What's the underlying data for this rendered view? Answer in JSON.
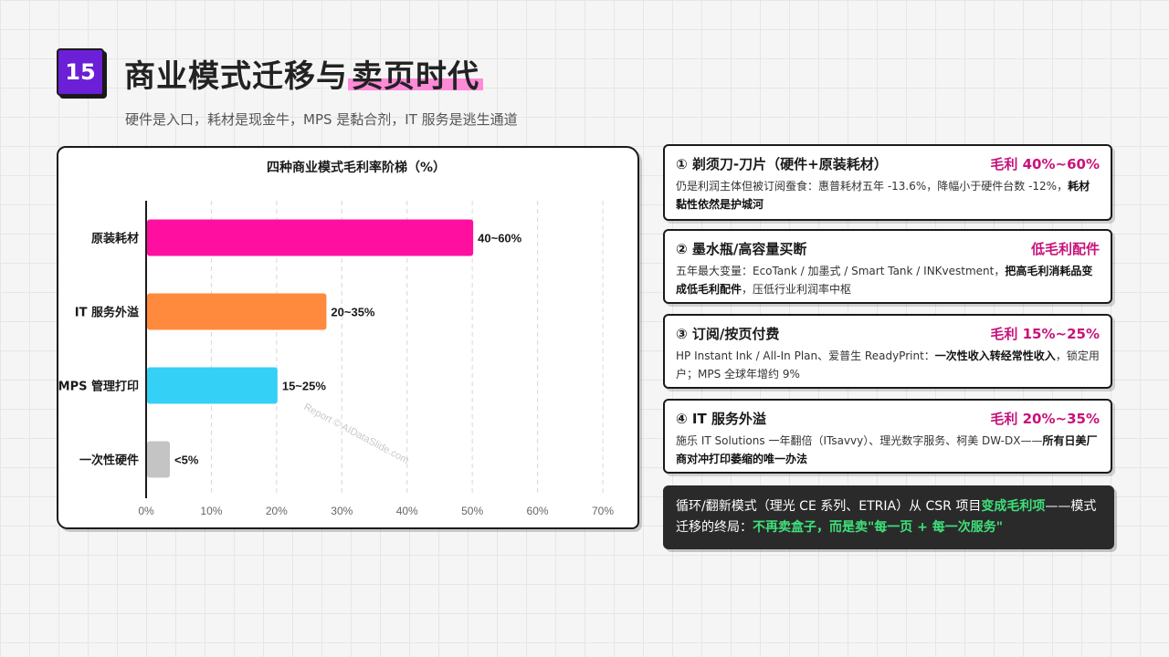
{
  "header": {
    "badge": "15",
    "title_main": "商业模式迁移与",
    "title_highlight": "卖页时代",
    "subtitle": "硬件是入口，耗材是现金牛，MPS 是黏合剂，IT 服务是逃生通道"
  },
  "chart_data": {
    "type": "bar",
    "orientation": "horizontal",
    "title": "四种商业模式毛利率阶梯（%）",
    "categories": [
      "原装耗材",
      "IT 服务外溢",
      "MPS 管理打印",
      "一次性硬件"
    ],
    "ranges": [
      [
        40,
        60
      ],
      [
        20,
        35
      ],
      [
        15,
        25
      ],
      [
        0,
        5
      ]
    ],
    "values": [
      50,
      27.5,
      20,
      3.5
    ],
    "value_labels": [
      "40~60%",
      "20~35%",
      "15~25%",
      "<5%"
    ],
    "colors": [
      "#ff0fa0",
      "#ff8a3d",
      "#35d0f5",
      "#c4c4c4"
    ],
    "xlim": [
      0,
      70
    ],
    "xticks": [
      0,
      10,
      20,
      30,
      40,
      50,
      60,
      70
    ],
    "xtick_labels": [
      "0%",
      "10%",
      "20%",
      "30%",
      "40%",
      "50%",
      "60%",
      "70%"
    ],
    "grid": "vertical-dashed",
    "xlabel": "",
    "ylabel": "",
    "watermark": "Report © AIDataSlide.com"
  },
  "cards": [
    {
      "title": "① 剃须刀-刀片（硬件+原装耗材）",
      "tag": "毛利 40%~60%",
      "body_plain": "仍是利润主体但被订阅蚕食：惠普耗材五年 -13.6%，降幅小于硬件台数 -12%，",
      "body_bold": "耗材黏性依然是护城河",
      "body_tail": ""
    },
    {
      "title": "② 墨水瓶/高容量买断",
      "tag": "低毛利配件",
      "body_plain": "五年最大变量：EcoTank / 加墨式 / Smart Tank / INKvestment，",
      "body_bold": "把高毛利消耗品变成低毛利配件",
      "body_tail": "，压低行业利润率中枢"
    },
    {
      "title": "③ 订阅/按页付费",
      "tag": "毛利 15%~25%",
      "body_plain": "HP Instant Ink / All-In Plan、爱普生 ReadyPrint：",
      "body_bold": "一次性收入转经常性收入",
      "body_tail": "，锁定用户；MPS 全球年增约 9%"
    },
    {
      "title": "④ IT 服务外溢",
      "tag": "毛利 20%~35%",
      "body_plain": "施乐 IT Solutions 一年翻倍（ITsavvy）、理光数字服务、柯美 DW-DX——",
      "body_bold": "所有日美厂商对冲打印萎缩的唯一办法",
      "body_tail": ""
    }
  ],
  "footer_note": {
    "part1": "循环/翻新模式（理光 CE 系列、ETRIA）从 CSR 项目",
    "hl1": "变成毛利项",
    "part2": "——模式迁移的终局：",
    "hl2": "不再卖盒子，而是卖\"每一页 + 每一次服务\""
  }
}
